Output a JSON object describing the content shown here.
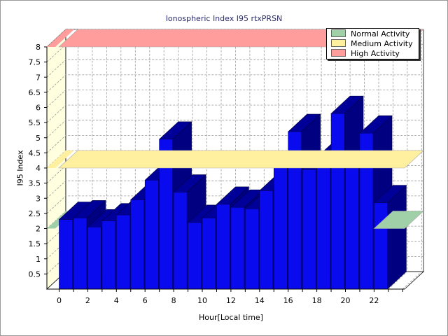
{
  "chart_data": {
    "type": "bar",
    "title": "Ionospheric Index I95 rtxPRSN",
    "xlabel": "Hour[Local time]",
    "ylabel": "I95 Index",
    "ylim": [
      0,
      8
    ],
    "yticks": [
      0.5,
      1,
      1.5,
      2,
      2.5,
      3,
      3.5,
      4,
      4.5,
      5,
      5.5,
      6,
      6.5,
      7,
      7.5,
      8
    ],
    "ytick_labels": [
      "0.5",
      "1",
      "1.5",
      "2",
      "2.5",
      "3",
      "3.5",
      "4",
      "4.5",
      "5",
      "5.5",
      "6",
      "6.5",
      "7",
      "7.5",
      "8"
    ],
    "xtick_labels": [
      "0",
      "2",
      "4",
      "6",
      "8",
      "10",
      "12",
      "14",
      "16",
      "18",
      "20",
      "22"
    ],
    "x": [
      0,
      1,
      2,
      3,
      4,
      5,
      6,
      7,
      8,
      9,
      10,
      11,
      12,
      13,
      14,
      15,
      16,
      17,
      18,
      19,
      20,
      21,
      22,
      23
    ],
    "values": [
      2.3,
      2.35,
      2.05,
      2.25,
      2.45,
      2.95,
      3.6,
      4.95,
      3.2,
      2.2,
      2.35,
      2.8,
      2.7,
      2.65,
      3.25,
      4.05,
      5.2,
      3.95,
      4.35,
      5.8,
      4.0,
      5.15,
      2.85,
      0
    ],
    "bar_color": "#0a0aee",
    "bar_top_color": "#000099",
    "bar_side_color": "#000080",
    "grid": true,
    "legend_position": "top-right",
    "bands": [
      {
        "name": "Normal Activity",
        "level": 2.0,
        "color": "#a0d0a8"
      },
      {
        "name": "Medium Activity",
        "level": 4.0,
        "color": "#fff0a0"
      },
      {
        "name": "High Activity",
        "level": 8.0,
        "color": "#ff9d9d"
      }
    ]
  }
}
